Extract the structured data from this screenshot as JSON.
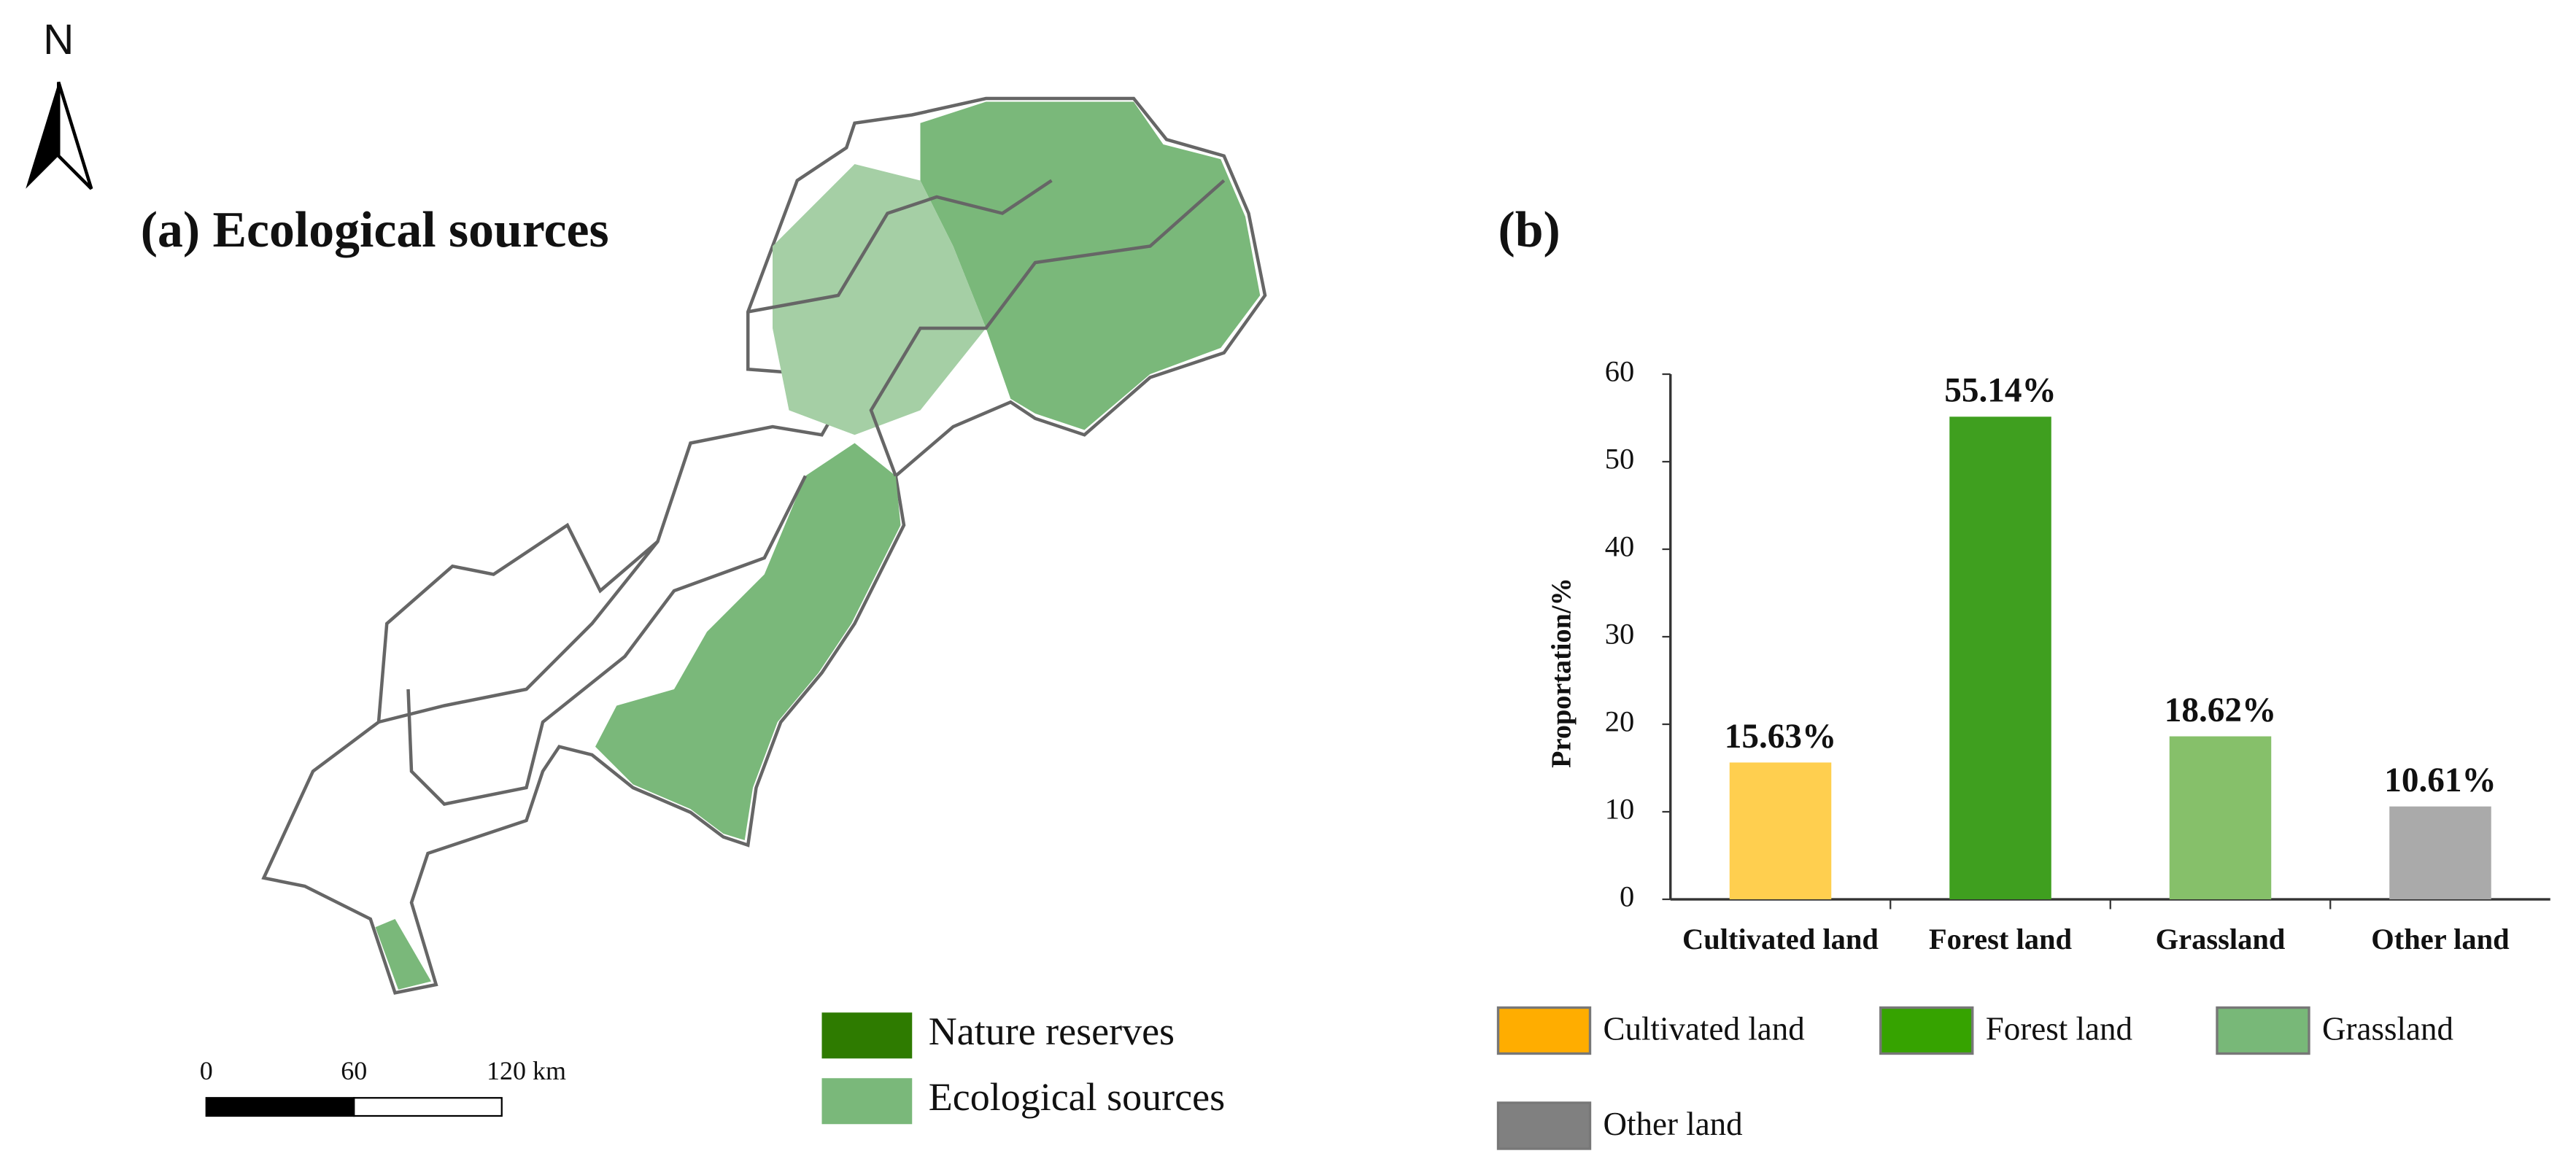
{
  "map": {
    "title": "(a) Ecological sources",
    "north": "N",
    "scale_labels": [
      "0",
      "60",
      "120 km"
    ],
    "legend": [
      {
        "name": "Nature reserves",
        "color": "#2e7b00"
      },
      {
        "name": "Ecological sources",
        "color": "#7ab87a"
      }
    ]
  },
  "chart_data": {
    "type": "bar",
    "title": "(b)",
    "y_label": "Proportation/%",
    "categories": [
      "Cultivated land",
      "Forest land",
      "Grassland",
      "Other land"
    ],
    "values": [
      15.63,
      55.14,
      18.62,
      10.61
    ],
    "value_labels": [
      "15.63%",
      "55.14%",
      "18.62%",
      "10.61%"
    ],
    "colors": [
      "#ffcf4f",
      "#3f9f1f",
      "#86c06a",
      "#aaaaaa"
    ],
    "ylim": [
      0,
      60
    ],
    "yticks": [
      0,
      10,
      20,
      30,
      40,
      50,
      60
    ],
    "legend": [
      {
        "name": "Cultivated land",
        "color": "#ffad00"
      },
      {
        "name": "Forest land",
        "color": "#36a300"
      },
      {
        "name": "Grassland",
        "color": "#78b878"
      },
      {
        "name": "Other land",
        "color": "#808080"
      }
    ]
  }
}
